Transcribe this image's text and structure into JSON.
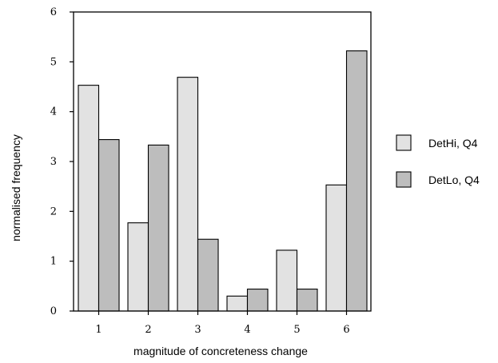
{
  "chart_data": {
    "type": "bar",
    "categories": [
      "1",
      "2",
      "3",
      "4",
      "5",
      "6"
    ],
    "series": [
      {
        "name": "DetHi, Q4",
        "color": "#e2e2e2",
        "values": [
          4.53,
          1.77,
          4.69,
          0.3,
          1.22,
          2.53
        ]
      },
      {
        "name": "DetLo, Q4",
        "color": "#bdbdbd",
        "values": [
          3.44,
          3.33,
          1.44,
          0.44,
          0.44,
          5.22
        ]
      }
    ],
    "xlabel": "magnitude of concreteness change",
    "ylabel": "normalised frequency",
    "ylim": [
      0,
      6
    ],
    "yticks": [
      "0",
      "1",
      "2",
      "3",
      "4",
      "5",
      "6"
    ],
    "legend_position": "right",
    "grid": false
  }
}
